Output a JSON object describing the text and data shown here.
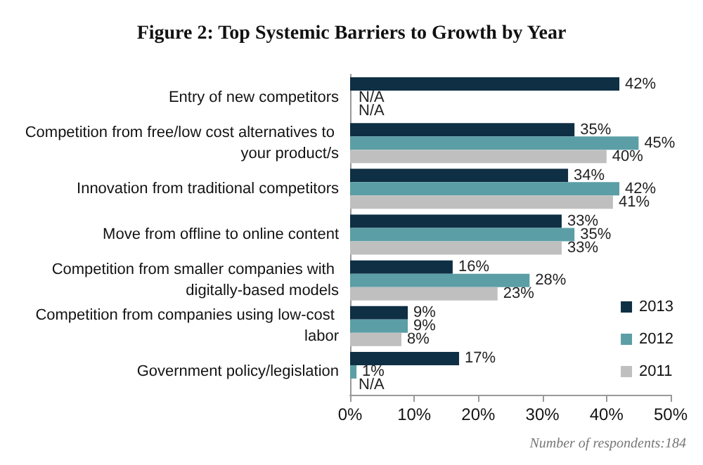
{
  "chart_data": {
    "type": "bar",
    "orientation": "horizontal",
    "title": "Figure 2: Top Systemic Barriers to Growth by Year",
    "categories": [
      "Entry of new competitors",
      "Competition from free/low cost alternatives to your product/s",
      "Innovation from traditional competitors",
      "Move from offline to online content",
      "Competition from smaller companies with digitally-based models",
      "Competition from companies using low-cost labor",
      "Government policy/legislation"
    ],
    "series": [
      {
        "name": "2013",
        "color": "#0e2f44",
        "values": [
          42,
          35,
          34,
          33,
          16,
          9,
          17
        ],
        "value_labels": [
          "42%",
          "35%",
          "34%",
          "33%",
          "16%",
          "9%",
          "17%"
        ]
      },
      {
        "name": "2012",
        "color": "#5b9ea6",
        "values": [
          null,
          45,
          42,
          35,
          28,
          9,
          1
        ],
        "value_labels": [
          "N/A",
          "45%",
          "42%",
          "35%",
          "28%",
          "9%",
          "1%"
        ]
      },
      {
        "name": "2011",
        "color": "#bfbfbf",
        "values": [
          null,
          40,
          41,
          33,
          23,
          8,
          null
        ],
        "value_labels": [
          "N/A",
          "40%",
          "41%",
          "33%",
          "23%",
          "8%",
          "N/A"
        ]
      }
    ],
    "xlim": [
      0,
      50
    ],
    "xticks": [
      {
        "value": 0,
        "label": "0%"
      },
      {
        "value": 10,
        "label": "10%"
      },
      {
        "value": 20,
        "label": "20%"
      },
      {
        "value": 30,
        "label": "30%"
      },
      {
        "value": 40,
        "label": "40%"
      },
      {
        "value": 50,
        "label": "50%"
      }
    ],
    "grid": false,
    "legend": "right",
    "annotations": [
      "Number of respondents:184"
    ]
  }
}
